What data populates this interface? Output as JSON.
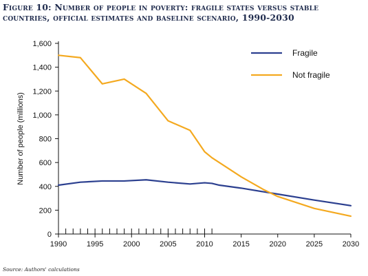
{
  "figure": {
    "title": "Figure 10: Number of people in poverty: fragile states versus stable\ncountries, official estimates and baseline scenario, 1990-2030",
    "source": "Source: Authors' calculations"
  },
  "chart_data": {
    "type": "line",
    "title": "Figure 10: Number of people in poverty: fragile states versus stable countries, official estimates and baseline scenario, 1990-2030",
    "xlabel": "",
    "ylabel": "Number of people (millions)",
    "xlim": [
      1990,
      2030
    ],
    "ylim": [
      0,
      1600
    ],
    "x_ticks": [
      1990,
      1995,
      2000,
      2005,
      2010,
      2015,
      2020,
      2025,
      2030
    ],
    "x_tick_labels": [
      "1990",
      "1995",
      "2000",
      "2005",
      "2010",
      "2015",
      "2020",
      "2025",
      "2030"
    ],
    "x_minor_ticks": [
      1990,
      1991,
      1992,
      1993,
      1994,
      1995,
      1996,
      1997,
      1998,
      1999,
      2000,
      2001,
      2002,
      2003,
      2004,
      2005,
      2006,
      2007,
      2008,
      2009,
      2010,
      2011
    ],
    "y_ticks": [
      0,
      200,
      400,
      600,
      800,
      1000,
      1200,
      1400,
      1600
    ],
    "y_tick_labels": [
      "0",
      "200",
      "400",
      "600",
      "800",
      "1,000",
      "1,200",
      "1,400",
      "1,600"
    ],
    "grid": false,
    "legend": {
      "position": "top-right",
      "entries": [
        "Fragile",
        "Not fragile"
      ]
    },
    "series": [
      {
        "name": "Fragile",
        "color": "#2b3f8f",
        "x": [
          1990,
          1993,
          1996,
          1999,
          2002,
          2005,
          2008,
          2010,
          2011,
          2012,
          2015,
          2018,
          2020,
          2025,
          2030
        ],
        "y": [
          410,
          435,
          445,
          445,
          455,
          435,
          420,
          430,
          425,
          410,
          385,
          355,
          335,
          285,
          238
        ]
      },
      {
        "name": "Not fragile",
        "color": "#f4a91f",
        "x": [
          1990,
          1993,
          1996,
          1999,
          2002,
          2005,
          2008,
          2010,
          2011,
          2015,
          2018,
          2020,
          2025,
          2030
        ],
        "y": [
          1500,
          1480,
          1260,
          1300,
          1180,
          950,
          870,
          690,
          640,
          480,
          375,
          315,
          215,
          150
        ]
      }
    ]
  }
}
